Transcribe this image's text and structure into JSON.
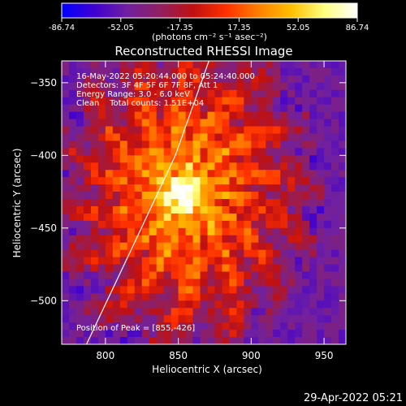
{
  "chart_data": {
    "type": "heatmap",
    "title": "Reconstructed RHESSI Image",
    "xlabel": "Heliocentric X (arcsec)",
    "ylabel": "Heliocentric Y (arcsec)",
    "xlim": [
      770,
      965
    ],
    "ylim": [
      -530,
      -335
    ],
    "x_ticks": [
      800,
      850,
      900,
      950
    ],
    "y_ticks": [
      -350,
      -400,
      -450,
      -500
    ],
    "colorbar": {
      "ticks": [
        "-86.74",
        "-52.05",
        "-17.35",
        "17.35",
        "52.05",
        "86.74"
      ],
      "range": [
        -86.74,
        86.74
      ],
      "unit_label": "(photons cm⁻² s⁻¹ asec⁻²)",
      "colormap": [
        "#0000ff",
        "#4000d0",
        "#7020a0",
        "#902060",
        "#c01010",
        "#ff3000",
        "#ff8000",
        "#ffc000",
        "#ffff80",
        "#ffffff"
      ]
    },
    "annotations": [
      "16-May-2022 05:20:44.000 to 05:24:40.000",
      "Detectors: 3F 4F 5F 6F 7F 8F, Att 1",
      "Energy Range: 3.0 - 6.0 keV",
      "Clean    Total counts: 1.51E+04"
    ],
    "peak_label": "Position of Peak = [855,-426]",
    "peak": [
      855,
      -426
    ],
    "limb_curve": [
      [
        787,
        -530
      ],
      [
        820,
        -460
      ],
      [
        848,
        -400
      ],
      [
        871,
        -335
      ]
    ]
  },
  "footer": {
    "timestamp": "29-Apr-2022 05:21"
  }
}
